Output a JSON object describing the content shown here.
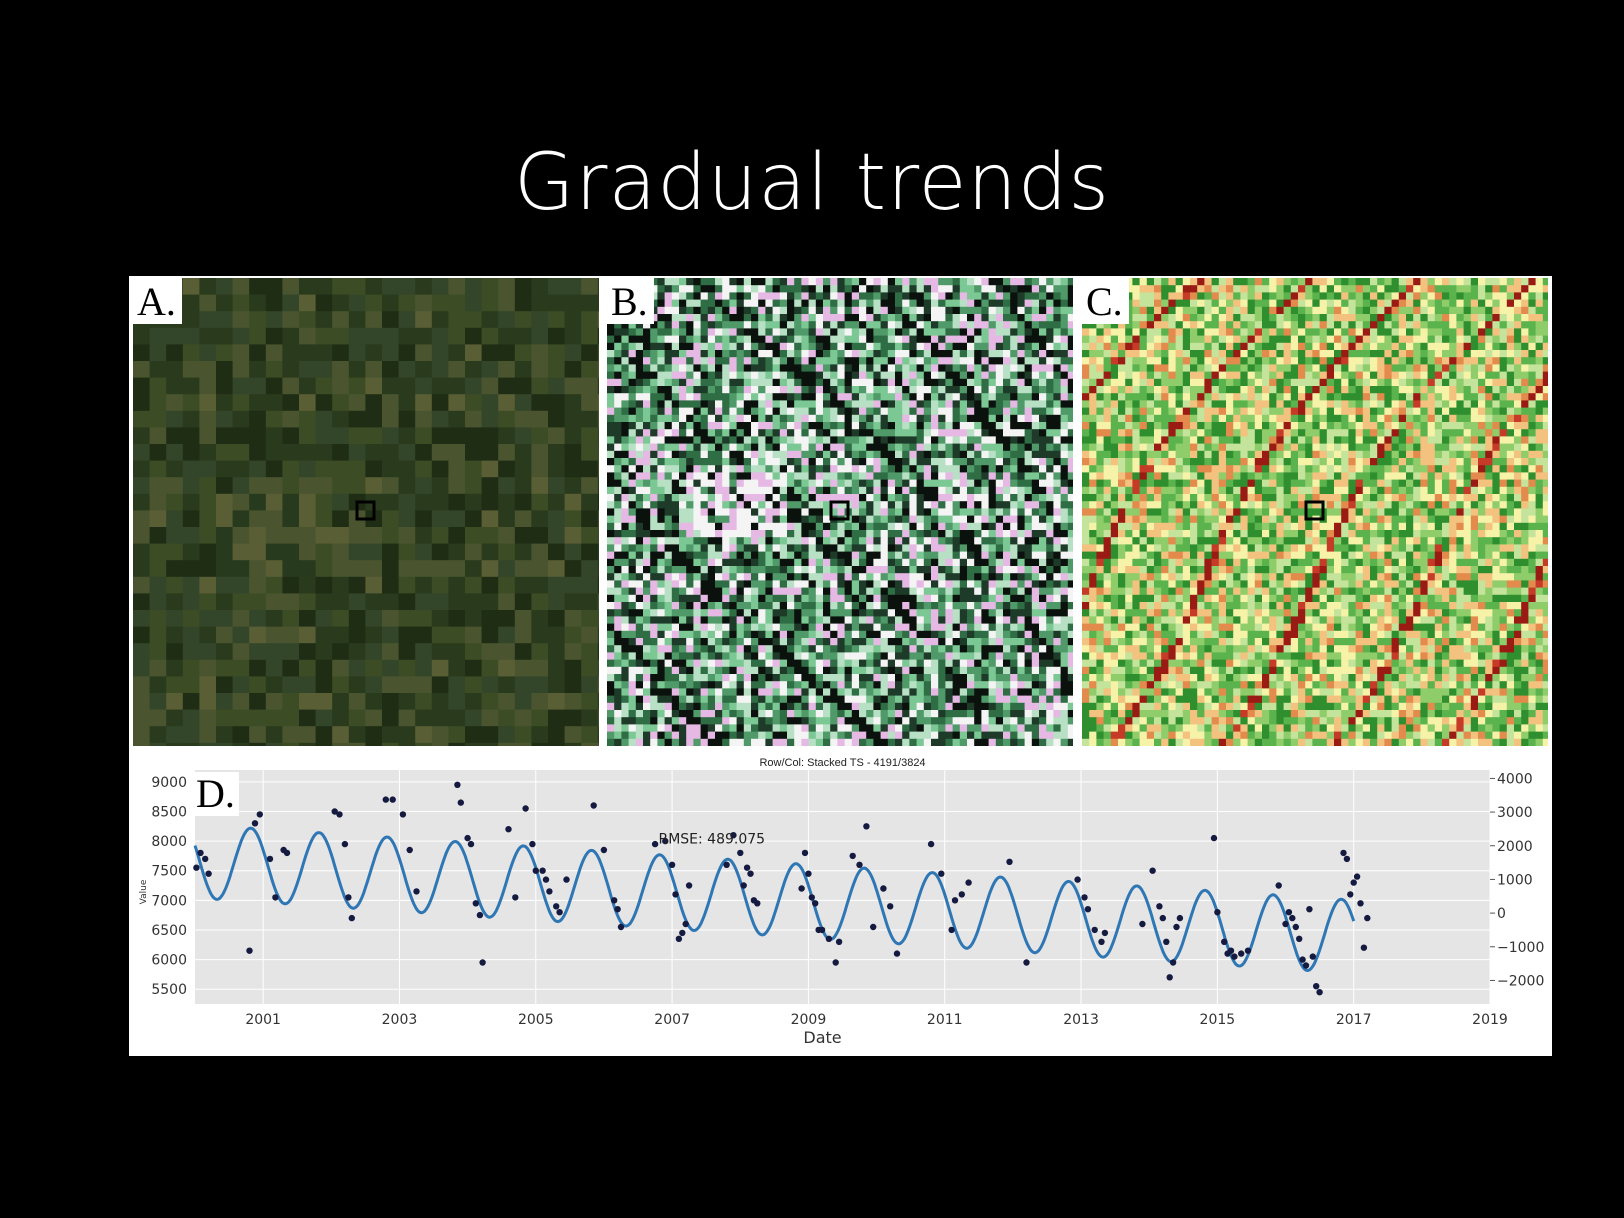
{
  "slide": {
    "title": "Gradual trends"
  },
  "panels": [
    {
      "letter": "A.",
      "palette": [
        "#1f2d15",
        "#2a3a1c",
        "#34462a",
        "#3c4c24",
        "#4a5530",
        "#5a5e35",
        "#283a1d"
      ]
    },
    {
      "letter": "B.",
      "palette": [
        "#0b120d",
        "#1d3b28",
        "#2f6d45",
        "#4f9a68",
        "#7cc894",
        "#b7e0c4",
        "#e6b8e4",
        "#f4f4f4"
      ]
    },
    {
      "letter": "C.",
      "palette": [
        "#2f8f2f",
        "#5bb34d",
        "#8fcc6a",
        "#c4e39b",
        "#f6f2a8",
        "#f2c27e",
        "#e38a4d",
        "#c63b27",
        "#9a1b14"
      ]
    }
  ],
  "chart_data": {
    "type": "scatter",
    "letter": "D.",
    "title": "Row/Col: Stacked TS - 4191/3824",
    "xlabel": "Date",
    "ylabel": "Value",
    "xlim": [
      2000.0,
      2019
    ],
    "ylim": [
      5250,
      9200
    ],
    "right_ylim": [
      -2700,
      4250
    ],
    "x_ticks": [
      2001,
      2003,
      2005,
      2007,
      2009,
      2011,
      2013,
      2015,
      2017,
      2019
    ],
    "x_tick_labels": [
      "2001",
      "2003",
      "2005",
      "2007",
      "2009",
      "2011",
      "2013",
      "2015",
      "2017",
      "2019"
    ],
    "y_ticks": [
      5500,
      6000,
      6500,
      7000,
      7500,
      8000,
      8500,
      9000
    ],
    "y_tick_labels": [
      "5500",
      "6000",
      "6500",
      "7000",
      "7500",
      "8000",
      "8500",
      "9000"
    ],
    "right_y_ticks": [
      -2000,
      -1000,
      0,
      1000,
      2000,
      3000,
      4000
    ],
    "right_y_tick_labels": [
      "−2000",
      "−1000",
      "0",
      "1000",
      "2000",
      "3000",
      "4000"
    ],
    "annotation": "RMSE: 489.075",
    "grid": true,
    "fit": {
      "x_range": [
        2000.0,
        2017.0
      ],
      "trend": [
        7660,
        -75
      ],
      "amplitude": 620,
      "phase_peak": 0.82
    },
    "points": {
      "x": [
        2000.02,
        2000.08,
        2000.15,
        2000.2,
        2000.8,
        2000.88,
        2000.95,
        2001.1,
        2001.18,
        2001.3,
        2001.35,
        2002.05,
        2002.12,
        2002.2,
        2002.25,
        2002.3,
        2002.8,
        2002.9,
        2003.05,
        2003.15,
        2003.25,
        2003.85,
        2003.9,
        2004.0,
        2004.05,
        2004.12,
        2004.18,
        2004.22,
        2004.6,
        2004.7,
        2004.85,
        2004.95,
        2005.0,
        2005.1,
        2005.15,
        2005.2,
        2005.3,
        2005.35,
        2005.45,
        2005.85,
        2006.0,
        2006.15,
        2006.2,
        2006.25,
        2006.75,
        2006.9,
        2007.0,
        2007.05,
        2007.1,
        2007.15,
        2007.2,
        2007.25,
        2007.8,
        2007.9,
        2008.0,
        2008.05,
        2008.1,
        2008.15,
        2008.2,
        2008.25,
        2008.9,
        2008.95,
        2009.0,
        2009.05,
        2009.1,
        2009.15,
        2009.2,
        2009.3,
        2009.4,
        2009.45,
        2009.65,
        2009.75,
        2009.85,
        2009.95,
        2010.1,
        2010.2,
        2010.3,
        2010.8,
        2010.95,
        2011.1,
        2011.15,
        2011.25,
        2011.35,
        2011.95,
        2012.2,
        2012.95,
        2013.05,
        2013.1,
        2013.2,
        2013.3,
        2013.35,
        2013.9,
        2014.05,
        2014.15,
        2014.2,
        2014.25,
        2014.3,
        2014.35,
        2014.4,
        2014.45,
        2014.95,
        2015.0,
        2015.1,
        2015.15,
        2015.2,
        2015.25,
        2015.35,
        2015.45,
        2015.9,
        2016.0,
        2016.05,
        2016.1,
        2016.15,
        2016.2,
        2016.25,
        2016.3,
        2016.35,
        2016.4,
        2016.45,
        2016.5,
        2016.85,
        2016.9,
        2016.95,
        2017.0,
        2017.05,
        2017.1,
        2017.15,
        2017.2
      ],
      "y": [
        7550,
        7800,
        7700,
        7450,
        6150,
        8300,
        8450,
        7700,
        7050,
        7850,
        7800,
        8500,
        8450,
        7950,
        7050,
        6700,
        8700,
        8700,
        8450,
        7850,
        7150,
        8950,
        8650,
        8050,
        7950,
        6950,
        6750,
        5950,
        8200,
        7050,
        8550,
        7950,
        7500,
        7500,
        7350,
        7150,
        6900,
        6800,
        7350,
        8600,
        7850,
        7000,
        6850,
        6550,
        7950,
        8000,
        7600,
        7100,
        6350,
        6450,
        6600,
        7250,
        7600,
        8100,
        7800,
        7250,
        7550,
        7450,
        7000,
        6950,
        7200,
        7800,
        7450,
        7050,
        6950,
        6500,
        6500,
        6350,
        5950,
        6300,
        7750,
        7600,
        8250,
        6550,
        7200,
        6900,
        6100,
        7950,
        7450,
        6500,
        7000,
        7100,
        7300,
        7650,
        5950,
        7350,
        7050,
        6850,
        6500,
        6300,
        6450,
        6600,
        7500,
        6900,
        6700,
        6300,
        5700,
        5950,
        6550,
        6700,
        8050,
        6800,
        6300,
        6100,
        6150,
        6050,
        6100,
        6150,
        7250,
        6600,
        6800,
        6700,
        6550,
        6350,
        6000,
        5900,
        6850,
        6050,
        5550,
        5450,
        7800,
        7700,
        7100,
        7300,
        7400,
        6950,
        6200,
        6700
      ]
    },
    "colors": {
      "fit": "#2f77b4",
      "points": "#151a40",
      "plot_bg": "#e5e5e5",
      "grid": "#ffffff"
    }
  }
}
